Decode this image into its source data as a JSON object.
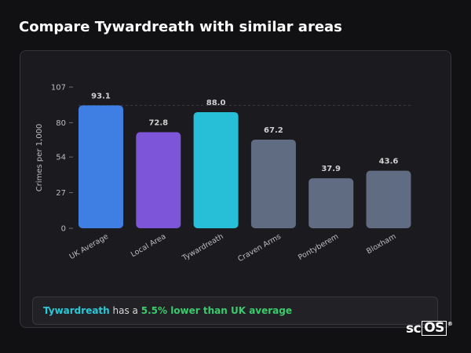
{
  "page": {
    "title": "Compare Tywardreath with similar areas"
  },
  "chart_data": {
    "type": "bar",
    "ylabel": "Crimes per 1,000",
    "xlabel": "",
    "ylim": [
      0,
      107
    ],
    "yticks": [
      0,
      27,
      54,
      80,
      107
    ],
    "grid": false,
    "categories": [
      "UK Average",
      "Local Area",
      "Tywardreath",
      "Craven Arms",
      "Pontyberem",
      "Bloxham"
    ],
    "values": [
      93.1,
      72.8,
      88.0,
      67.2,
      37.9,
      43.6
    ],
    "value_labels": [
      "93.1",
      "72.8",
      "88.0",
      "67.2",
      "37.9",
      "43.6"
    ],
    "colors": [
      "#3f7fe3",
      "#7d55d8",
      "#27bfd8",
      "#5f6c82",
      "#5f6c82",
      "#5f6c82"
    ],
    "reference_line": {
      "value": 93.1,
      "style": "dashed"
    }
  },
  "summary": {
    "area": "Tywardreath",
    "text_middle": " has a ",
    "difference": "5.5% lower than UK average"
  },
  "logo": {
    "prefix": "sc",
    "boxed": "OS",
    "mark": "®"
  }
}
